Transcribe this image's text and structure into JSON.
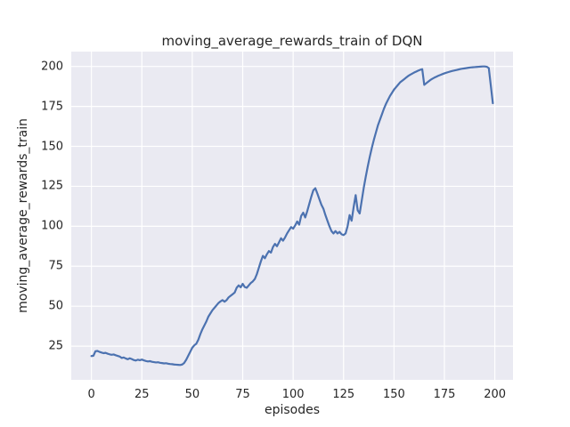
{
  "chart_data": {
    "type": "line",
    "title": "moving_average_rewards_train of DQN",
    "xlabel": "episodes",
    "ylabel": "moving_average_rewards_train",
    "x_ticks": [
      0,
      25,
      50,
      75,
      100,
      125,
      150,
      175,
      200
    ],
    "y_ticks": [
      25,
      50,
      75,
      100,
      125,
      150,
      175,
      200
    ],
    "xlim": [
      -10,
      209
    ],
    "ylim": [
      3.9,
      209.3
    ],
    "grid": true,
    "legend_position": "none",
    "style": {
      "figure_background": "#ffffff",
      "plot_background": "#eaeaf2",
      "grid_color": "#ffffff",
      "line_color": "#4c72b0",
      "text_color": "#262626"
    },
    "series": [
      {
        "name": "moving_average_rewards_train",
        "x": [
          0,
          1,
          2,
          3,
          4,
          5,
          6,
          7,
          8,
          9,
          10,
          11,
          12,
          13,
          14,
          15,
          16,
          17,
          18,
          19,
          20,
          21,
          22,
          23,
          24,
          25,
          26,
          27,
          28,
          29,
          30,
          31,
          32,
          33,
          34,
          35,
          36,
          37,
          38,
          39,
          40,
          41,
          42,
          43,
          44,
          45,
          46,
          47,
          48,
          49,
          50,
          51,
          52,
          53,
          54,
          55,
          56,
          57,
          58,
          59,
          60,
          61,
          62,
          63,
          64,
          65,
          66,
          67,
          68,
          69,
          70,
          71,
          72,
          73,
          74,
          75,
          76,
          77,
          78,
          79,
          80,
          81,
          82,
          83,
          84,
          85,
          86,
          87,
          88,
          89,
          90,
          91,
          92,
          93,
          94,
          95,
          96,
          97,
          98,
          99,
          100,
          101,
          102,
          103,
          104,
          105,
          106,
          107,
          108,
          109,
          110,
          111,
          112,
          113,
          114,
          115,
          116,
          117,
          118,
          119,
          120,
          121,
          122,
          123,
          124,
          125,
          126,
          127,
          128,
          129,
          130,
          131,
          132,
          133,
          134,
          135,
          136,
          137,
          138,
          139,
          140,
          141,
          142,
          143,
          144,
          145,
          146,
          147,
          148,
          149,
          150,
          151,
          152,
          153,
          154,
          155,
          156,
          157,
          158,
          159,
          160,
          161,
          162,
          163,
          164,
          165,
          166,
          167,
          168,
          169,
          170,
          171,
          172,
          173,
          174,
          175,
          176,
          177,
          178,
          179,
          180,
          181,
          182,
          183,
          184,
          185,
          186,
          187,
          188,
          189,
          190,
          191,
          192,
          193,
          194,
          195,
          196,
          197,
          198,
          199
        ],
        "y": [
          18.8,
          19.0,
          21.8,
          22.0,
          21.4,
          21.0,
          20.6,
          20.8,
          20.3,
          19.9,
          19.6,
          19.8,
          19.3,
          18.9,
          18.5,
          17.6,
          17.9,
          17.3,
          16.8,
          17.4,
          16.9,
          16.3,
          16.0,
          16.5,
          16.2,
          16.6,
          16.1,
          15.7,
          15.4,
          15.6,
          15.2,
          15.0,
          14.8,
          14.9,
          14.6,
          14.4,
          14.2,
          14.3,
          14.0,
          13.8,
          13.7,
          13.5,
          13.4,
          13.3,
          13.2,
          13.5,
          14.5,
          16.5,
          19.0,
          21.5,
          24.0,
          25.5,
          26.5,
          29.0,
          32.5,
          35.5,
          38.0,
          40.5,
          43.5,
          45.5,
          47.5,
          49.0,
          50.5,
          52.0,
          53.0,
          53.8,
          52.8,
          53.8,
          55.5,
          56.5,
          57.5,
          58.5,
          61.5,
          63.0,
          61.8,
          64.0,
          62.0,
          61.5,
          63.0,
          64.5,
          65.5,
          67.0,
          70.0,
          74.0,
          78.0,
          81.5,
          80.0,
          82.5,
          84.5,
          83.5,
          87.0,
          89.0,
          87.5,
          90.0,
          92.5,
          91.0,
          93.0,
          95.5,
          97.5,
          99.5,
          98.5,
          100.5,
          103.0,
          101.0,
          106.5,
          108.5,
          105.5,
          109.5,
          114.0,
          118.5,
          122.5,
          123.8,
          120.5,
          117.0,
          113.5,
          111.0,
          107.0,
          103.5,
          100.0,
          97.0,
          95.5,
          97.0,
          95.5,
          96.5,
          95.0,
          94.5,
          95.5,
          100.0,
          107.0,
          103.5,
          112.0,
          119.5,
          110.0,
          108.0,
          116.0,
          124.0,
          131.0,
          137.5,
          143.5,
          149.0,
          154.0,
          158.5,
          163.0,
          166.5,
          170.0,
          173.5,
          176.5,
          179.0,
          181.5,
          183.5,
          185.5,
          187.0,
          188.5,
          190.0,
          191.0,
          192.0,
          193.0,
          194.0,
          194.8,
          195.5,
          196.2,
          196.8,
          197.4,
          197.9,
          198.3,
          188.5,
          189.5,
          190.5,
          191.5,
          192.3,
          193.0,
          193.6,
          194.2,
          194.7,
          195.2,
          195.7,
          196.1,
          196.5,
          196.9,
          197.2,
          197.5,
          197.8,
          198.1,
          198.4,
          198.6,
          198.8,
          199.0,
          199.2,
          199.4,
          199.5,
          199.6,
          199.7,
          199.8,
          199.9,
          200.0,
          200.0,
          199.8,
          199.0,
          188.0,
          177.0
        ]
      }
    ]
  }
}
